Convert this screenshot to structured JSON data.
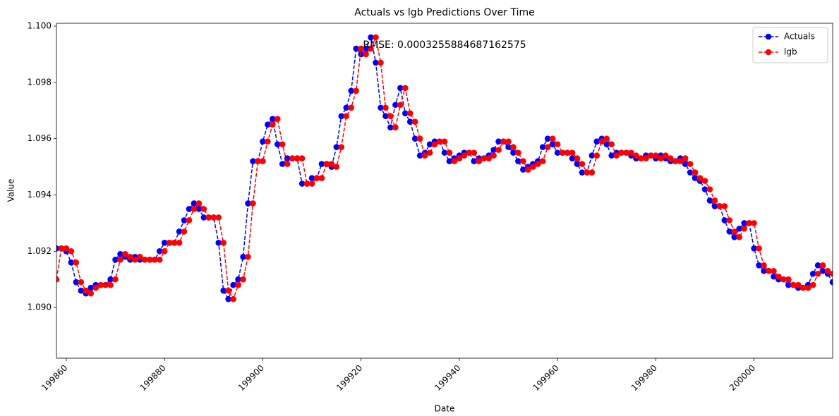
{
  "chart_data": {
    "type": "line",
    "title": "Actuals vs lgb Predictions Over Time",
    "annotation": "RMSE: 0.0003255884687162575",
    "xlabel": "Date",
    "ylabel": "Value",
    "xlim": [
      199858,
      200016
    ],
    "xticks": [
      199860,
      199880,
      199900,
      199920,
      199940,
      199960,
      199980,
      200000
    ],
    "ylim": [
      1.0882,
      1.1001
    ],
    "yticks": [
      {
        "value": 1.09,
        "label": "1.090"
      },
      {
        "value": 1.092,
        "label": "1.092"
      },
      {
        "value": 1.094,
        "label": "1.094"
      },
      {
        "value": 1.096,
        "label": "1.096"
      },
      {
        "value": 1.098,
        "label": "1.098"
      },
      {
        "value": 1.1,
        "label": "1.100"
      }
    ],
    "legend": "upper right",
    "grid": false,
    "x": [
      199858,
      199859,
      199860,
      199861,
      199862,
      199863,
      199864,
      199865,
      199866,
      199867,
      199868,
      199869,
      199870,
      199871,
      199872,
      199873,
      199874,
      199875,
      199876,
      199877,
      199878,
      199879,
      199880,
      199881,
      199882,
      199883,
      199884,
      199885,
      199886,
      199887,
      199888,
      199889,
      199890,
      199891,
      199892,
      199893,
      199894,
      199895,
      199896,
      199897,
      199898,
      199899,
      199900,
      199901,
      199902,
      199903,
      199904,
      199905,
      199906,
      199907,
      199908,
      199909,
      199910,
      199911,
      199912,
      199913,
      199914,
      199915,
      199916,
      199917,
      199918,
      199919,
      199920,
      199921,
      199922,
      199923,
      199924,
      199925,
      199926,
      199927,
      199928,
      199929,
      199930,
      199931,
      199932,
      199933,
      199934,
      199935,
      199936,
      199937,
      199938,
      199939,
      199940,
      199941,
      199942,
      199943,
      199944,
      199945,
      199946,
      199947,
      199948,
      199949,
      199950,
      199951,
      199952,
      199953,
      199954,
      199955,
      199956,
      199957,
      199958,
      199959,
      199960,
      199961,
      199962,
      199963,
      199964,
      199965,
      199966,
      199967,
      199968,
      199969,
      199970,
      199971,
      199972,
      199973,
      199974,
      199975,
      199976,
      199977,
      199978,
      199979,
      199980,
      199981,
      199982,
      199983,
      199984,
      199985,
      199986,
      199987,
      199988,
      199989,
      199990,
      199991,
      199992,
      199993,
      199994,
      199995,
      199996,
      199997,
      199998,
      199999,
      200000,
      200001,
      200002,
      200003,
      200004,
      200005,
      200006,
      200007,
      200008,
      200009,
      200010,
      200011,
      200012,
      200013,
      200014,
      200015,
      200016
    ],
    "series": [
      {
        "name": "Actuals",
        "color": "#0000ff",
        "values": [
          1.0921,
          1.0921,
          1.092,
          1.0916,
          1.0909,
          1.0906,
          1.0905,
          1.0907,
          1.0908,
          1.0908,
          1.0908,
          1.091,
          1.0917,
          1.0919,
          1.0918,
          1.0917,
          1.0918,
          1.0917,
          1.0917,
          1.0917,
          1.0917,
          1.092,
          1.0923,
          1.0923,
          1.0923,
          1.0927,
          1.0931,
          1.0935,
          1.0937,
          1.0935,
          1.0932,
          1.0932,
          1.0932,
          1.0923,
          1.0906,
          1.0903,
          1.0908,
          1.091,
          1.0918,
          1.0937,
          1.0952,
          1.0952,
          1.0959,
          1.0965,
          1.0967,
          1.0958,
          1.0951,
          1.0953,
          1.0953,
          1.0953,
          1.0944,
          1.0944,
          1.0946,
          1.0946,
          1.0951,
          1.0951,
          1.095,
          1.0957,
          1.0968,
          1.0971,
          1.0977,
          1.0992,
          1.099,
          1.0992,
          1.0996,
          1.0987,
          1.0971,
          1.0968,
          1.0964,
          1.0972,
          1.0978,
          1.0969,
          1.0966,
          1.096,
          1.0954,
          1.0955,
          1.0958,
          1.0959,
          1.0959,
          1.0955,
          1.0952,
          1.0953,
          1.0954,
          1.0955,
          1.0955,
          1.0952,
          1.0953,
          1.0953,
          1.0954,
          1.0956,
          1.0959,
          1.0959,
          1.0957,
          1.0955,
          1.0952,
          1.0949,
          1.095,
          1.0951,
          1.0952,
          1.0957,
          1.096,
          1.0958,
          1.0955,
          1.0955,
          1.0955,
          1.0953,
          1.0951,
          1.0948,
          1.0948,
          1.0954,
          1.0959,
          1.096,
          1.0958,
          1.0954,
          1.0955,
          1.0955,
          1.0955,
          1.0954,
          1.0953,
          1.0953,
          1.0954,
          1.0954,
          1.0953,
          1.0954,
          1.0953,
          1.0952,
          1.0952,
          1.0953,
          1.0951,
          1.0948,
          1.0946,
          1.0945,
          1.0942,
          1.0938,
          1.0936,
          1.0936,
          1.0931,
          1.0927,
          1.0925,
          1.0928,
          1.093,
          1.093,
          1.0921,
          1.0915,
          1.0913,
          1.0913,
          1.0911,
          1.091,
          1.091,
          1.0908,
          1.0908,
          1.0907,
          1.0907,
          1.0908,
          1.0912,
          1.0915,
          1.0913,
          1.0912,
          1.0909
        ]
      },
      {
        "name": "lgb",
        "color": "#ff0000",
        "values": [
          1.091,
          1.0921,
          1.0921,
          1.092,
          1.0916,
          1.0909,
          1.0906,
          1.0905,
          1.0907,
          1.0908,
          1.0908,
          1.0908,
          1.091,
          1.0917,
          1.0919,
          1.0918,
          1.0917,
          1.0918,
          1.0917,
          1.0917,
          1.0917,
          1.0917,
          1.092,
          1.0923,
          1.0923,
          1.0923,
          1.0927,
          1.0931,
          1.0935,
          1.0937,
          1.0935,
          1.0932,
          1.0932,
          1.0932,
          1.0923,
          1.0906,
          1.0903,
          1.0908,
          1.091,
          1.0918,
          1.0937,
          1.0952,
          1.0952,
          1.0959,
          1.0965,
          1.0967,
          1.0958,
          1.0951,
          1.0953,
          1.0953,
          1.0953,
          1.0944,
          1.0944,
          1.0946,
          1.0946,
          1.0951,
          1.0951,
          1.095,
          1.0957,
          1.0968,
          1.0971,
          1.0977,
          1.0992,
          1.099,
          1.0992,
          1.0996,
          1.0987,
          1.0971,
          1.0968,
          1.0964,
          1.0972,
          1.0978,
          1.0969,
          1.0966,
          1.096,
          1.0954,
          1.0955,
          1.0958,
          1.0959,
          1.0959,
          1.0955,
          1.0952,
          1.0953,
          1.0954,
          1.0955,
          1.0955,
          1.0952,
          1.0953,
          1.0953,
          1.0954,
          1.0956,
          1.0959,
          1.0959,
          1.0957,
          1.0955,
          1.0952,
          1.0949,
          1.095,
          1.0951,
          1.0952,
          1.0957,
          1.096,
          1.0958,
          1.0955,
          1.0955,
          1.0955,
          1.0953,
          1.0951,
          1.0948,
          1.0948,
          1.0954,
          1.0959,
          1.096,
          1.0958,
          1.0954,
          1.0955,
          1.0955,
          1.0955,
          1.0954,
          1.0953,
          1.0953,
          1.0954,
          1.0954,
          1.0953,
          1.0954,
          1.0953,
          1.0952,
          1.0952,
          1.0953,
          1.0951,
          1.0948,
          1.0946,
          1.0945,
          1.0942,
          1.0938,
          1.0936,
          1.0936,
          1.0931,
          1.0927,
          1.0925,
          1.0928,
          1.093,
          1.093,
          1.0921,
          1.0915,
          1.0913,
          1.0913,
          1.0911,
          1.091,
          1.091,
          1.0908,
          1.0908,
          1.0907,
          1.0907,
          1.0908,
          1.0912,
          1.0915,
          1.0913,
          1.0912
        ]
      }
    ]
  }
}
